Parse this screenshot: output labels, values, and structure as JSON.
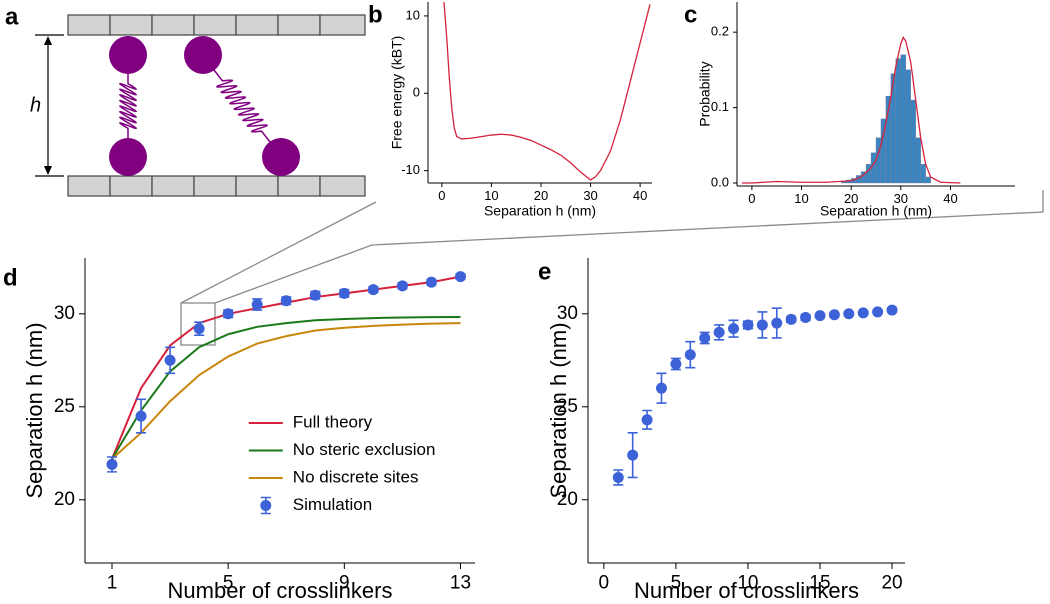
{
  "panel_labels": [
    "a",
    "b",
    "c",
    "d",
    "e"
  ],
  "schematic": {
    "height_label": "h"
  },
  "chart_data": [
    {
      "type": "line",
      "xlabel": "Separation h (nm)",
      "ylabel": "Free energy (kBT)",
      "xlim": [
        -2.8,
        42.4
      ],
      "ylim": [
        -11.6,
        11.8
      ],
      "xticks": [
        0,
        10,
        20,
        30,
        40
      ],
      "yticks": [
        -10,
        0,
        10
      ],
      "grid": false,
      "x": [
        0.4,
        1,
        1.5,
        2,
        2.5,
        3,
        4,
        6,
        8,
        10,
        12,
        14,
        16,
        18,
        20,
        22,
        24,
        26,
        28,
        29,
        30,
        31,
        32,
        34,
        36,
        38,
        40,
        41,
        42
      ],
      "series": [
        {
          "color": "#d6213b",
          "values": [
            12,
            7,
            2,
            -2,
            -4.5,
            -5.6,
            -5.9,
            -5.8,
            -5.6,
            -5.4,
            -5.3,
            -5.4,
            -5.7,
            -6.1,
            -6.7,
            -7.3,
            -8,
            -9,
            -10.2,
            -10.7,
            -11.2,
            -10.8,
            -10,
            -7.5,
            -3.5,
            1.5,
            6.5,
            9,
            11.5
          ]
        }
      ]
    },
    {
      "type": "histogram",
      "xlabel": "Separation h (nm)",
      "ylabel": "Probability",
      "xlim": [
        -3,
        53
      ],
      "ylim": [
        -0.004,
        0.24
      ],
      "xticks": [
        0,
        10,
        20,
        30,
        40
      ],
      "yticks": [
        {
          "value": 0,
          "label": "0.0"
        },
        0.1,
        0.2
      ],
      "grid": false,
      "color": "#3a85c0",
      "bins": [
        18,
        19,
        20,
        21,
        22,
        23,
        24,
        25,
        26,
        27,
        28,
        29,
        30,
        31,
        32,
        33,
        34,
        35,
        36
      ],
      "values": [
        0.002,
        0.004,
        0.006,
        0.01,
        0.015,
        0.025,
        0.04,
        0.06,
        0.085,
        0.115,
        0.145,
        0.165,
        0.17,
        0.15,
        0.11,
        0.06,
        0.025,
        0.008
      ],
      "lines": [
        {
          "color": "#d6213b",
          "x": [
            -2,
            0,
            5,
            10,
            15,
            20,
            22,
            24,
            25,
            26,
            27,
            28,
            29,
            30,
            30.5,
            31,
            32,
            33,
            34,
            35,
            36,
            38,
            42
          ],
          "values": [
            0,
            0,
            0.002,
            0.001,
            0.001,
            0.003,
            0.008,
            0.02,
            0.03,
            0.05,
            0.08,
            0.115,
            0.155,
            0.185,
            0.193,
            0.188,
            0.16,
            0.11,
            0.06,
            0.025,
            0.008,
            0.001,
            0
          ]
        }
      ]
    },
    {
      "type": "line",
      "xlabel": "Number of crosslinkers",
      "ylabel": "Separation h (nm)",
      "xlim": [
        0.07,
        13.5
      ],
      "ylim": [
        16.6,
        33
      ],
      "xticks": [
        1,
        5,
        9,
        13
      ],
      "yticks": [
        20,
        25,
        30
      ],
      "grid": false,
      "legend": "lower center",
      "x": [
        1,
        2,
        3,
        4,
        5,
        6,
        7,
        8,
        9,
        10,
        11,
        12,
        13
      ],
      "series": [
        {
          "name": "Full theory",
          "kind": "line",
          "color": "#d6213b",
          "values": [
            22.2,
            26,
            28.3,
            29.5,
            30,
            30.3,
            30.6,
            30.9,
            31.1,
            31.3,
            31.5,
            31.7,
            32
          ]
        },
        {
          "name": "No steric exclusion",
          "kind": "line",
          "color": "#1a7a1a",
          "values": [
            22.2,
            24.8,
            26.9,
            28.2,
            28.9,
            29.3,
            29.5,
            29.65,
            29.72,
            29.77,
            29.8,
            29.82,
            29.83
          ]
        },
        {
          "name": "No discrete sites",
          "kind": "line",
          "color": "#c8860a",
          "values": [
            22.2,
            23.6,
            25.3,
            26.7,
            27.7,
            28.4,
            28.8,
            29.1,
            29.25,
            29.35,
            29.42,
            29.47,
            29.5
          ]
        },
        {
          "name": "Simulation",
          "kind": "errorbar",
          "color": "#3d62d8",
          "values": [
            21.9,
            24.5,
            27.5,
            29.2,
            30.0,
            30.5,
            30.7,
            31.0,
            31.1,
            31.3,
            31.5,
            31.7,
            32.0
          ],
          "errors": [
            0.4,
            0.9,
            0.7,
            0.35,
            0.2,
            0.3,
            0.2,
            0.2,
            0.2,
            0.15,
            0.15,
            0.15,
            0.15
          ]
        }
      ]
    },
    {
      "type": "errorbar",
      "xlabel": "Number of crosslinkers",
      "ylabel": "Separation h (nm)",
      "xlim": [
        -1.1,
        20.9
      ],
      "ylim": [
        16.6,
        33
      ],
      "xticks": [
        0,
        5,
        10,
        15,
        20
      ],
      "yticks": [
        20,
        25,
        30
      ],
      "grid": false,
      "x": [
        1,
        2,
        3,
        4,
        5,
        6,
        7,
        8,
        9,
        10,
        11,
        12,
        13,
        14,
        15,
        16,
        17,
        18,
        19,
        20
      ],
      "series": [
        {
          "kind": "errorbar",
          "color": "#3d62d8",
          "values": [
            21.2,
            22.4,
            24.3,
            26.0,
            27.3,
            27.8,
            28.7,
            29.0,
            29.2,
            29.4,
            29.4,
            29.5,
            29.7,
            29.8,
            29.9,
            29.95,
            30.0,
            30.05,
            30.1,
            30.2
          ],
          "errors": [
            0.4,
            1.2,
            0.5,
            0.8,
            0.3,
            0.7,
            0.3,
            0.4,
            0.45,
            0.2,
            0.7,
            0.8,
            0.15,
            0.15,
            0.1,
            0.1,
            0.1,
            0.1,
            0.1,
            0.1
          ]
        }
      ]
    }
  ]
}
